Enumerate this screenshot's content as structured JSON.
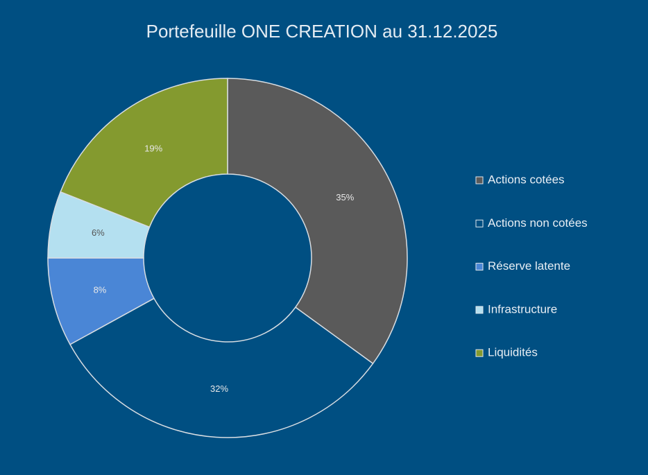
{
  "chart_data": {
    "type": "donut",
    "title": "Portefeuille ONE CREATION au 31.12.2025",
    "categories": [
      "Actions cotées",
      "Actions non cotées",
      "Réserve latente",
      "Infrastructure",
      "Liquidités"
    ],
    "values": [
      35,
      32,
      8,
      6,
      19
    ],
    "value_labels": [
      "35%",
      "32%",
      "8%",
      "6%",
      "19%"
    ],
    "colors": [
      "#5a5a5a",
      "#004f82",
      "#4a86d6",
      "#b4e0f0",
      "#849a2f"
    ],
    "legend": "right"
  }
}
